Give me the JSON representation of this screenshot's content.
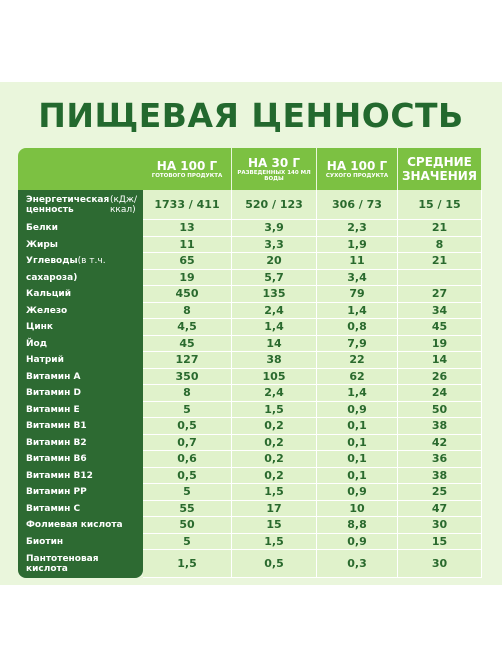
{
  "header": {
    "title": "ПИЩЕВАЯ ЦЕННОСТЬ"
  },
  "table": {
    "columns": [
      {
        "title": "НА 100 Г",
        "subtitle": "ГОТОВОГО ПРОДУКТА"
      },
      {
        "title": "НА 30 Г",
        "subtitle": "РАЗВЕДЕННЫХ 140 МЛ ВОДЫ"
      },
      {
        "title": "НА 100 Г",
        "subtitle": "СУХОГО ПРОДУКТА"
      },
      {
        "title": "СРЕДНИЕ ЗНАЧЕНИЯ"
      }
    ],
    "rows": [
      {
        "label": "Энергетическая ценность",
        "note": "(кДж/ккал)",
        "values": [
          "1733 / 411",
          "520 / 123",
          "306 / 73",
          "15 / 15"
        ]
      },
      {
        "label": "Белки",
        "values": [
          "13",
          "3,9",
          "2,3",
          "21"
        ]
      },
      {
        "label": "Жиры",
        "values": [
          "11",
          "3,3",
          "1,9",
          "8"
        ]
      },
      {
        "label": "Углеводы",
        "note": "(в т.ч.",
        "values": [
          "65",
          "20",
          "11",
          "21"
        ]
      },
      {
        "label": "сахароза)",
        "values": [
          "19",
          "5,7",
          "3,4"
        ]
      },
      {
        "label": "Кальций",
        "values": [
          "450",
          "135",
          "79",
          "27"
        ]
      },
      {
        "label": "Железо",
        "values": [
          "8",
          "2,4",
          "1,4",
          "34"
        ]
      },
      {
        "label": "Цинк",
        "values": [
          "4,5",
          "1,4",
          "0,8",
          "45"
        ]
      },
      {
        "label": "Йод",
        "values": [
          "45",
          "14",
          "7,9",
          "19"
        ]
      },
      {
        "label": "Натрий",
        "values": [
          "127",
          "38",
          "22",
          "14"
        ]
      },
      {
        "label": "Витамин А",
        "values": [
          "350",
          "105",
          "62",
          "26"
        ]
      },
      {
        "label": "Витамин D",
        "values": [
          "8",
          "2,4",
          "1,4",
          "24"
        ]
      },
      {
        "label": "Витамин Е",
        "values": [
          "5",
          "1,5",
          "0,9",
          "50"
        ]
      },
      {
        "label": "Витамин В1",
        "values": [
          "0,5",
          "0,2",
          "0,1",
          "38"
        ]
      },
      {
        "label": "Витамин В2",
        "values": [
          "0,7",
          "0,2",
          "0,1",
          "42"
        ]
      },
      {
        "label": "Витамин В6",
        "values": [
          "0,6",
          "0,2",
          "0,1",
          "36"
        ]
      },
      {
        "label": "Витамин В12",
        "values": [
          "0,5",
          "0,2",
          "0,1",
          "38"
        ]
      },
      {
        "label": "Витамин РР",
        "values": [
          "5",
          "1,5",
          "0,9",
          "25"
        ]
      },
      {
        "label": "Витамин С",
        "values": [
          "55",
          "17",
          "10",
          "47"
        ]
      },
      {
        "label": "Фолиевая кислота",
        "values": [
          "50",
          "15",
          "8,8",
          "30"
        ]
      },
      {
        "label": "Биотин",
        "values": [
          "5",
          "1,5",
          "0,9",
          "15"
        ]
      },
      {
        "label": "Пантотеновая кислота",
        "values": [
          "1,5",
          "0,5",
          "0,3",
          "30"
        ]
      }
    ]
  }
}
